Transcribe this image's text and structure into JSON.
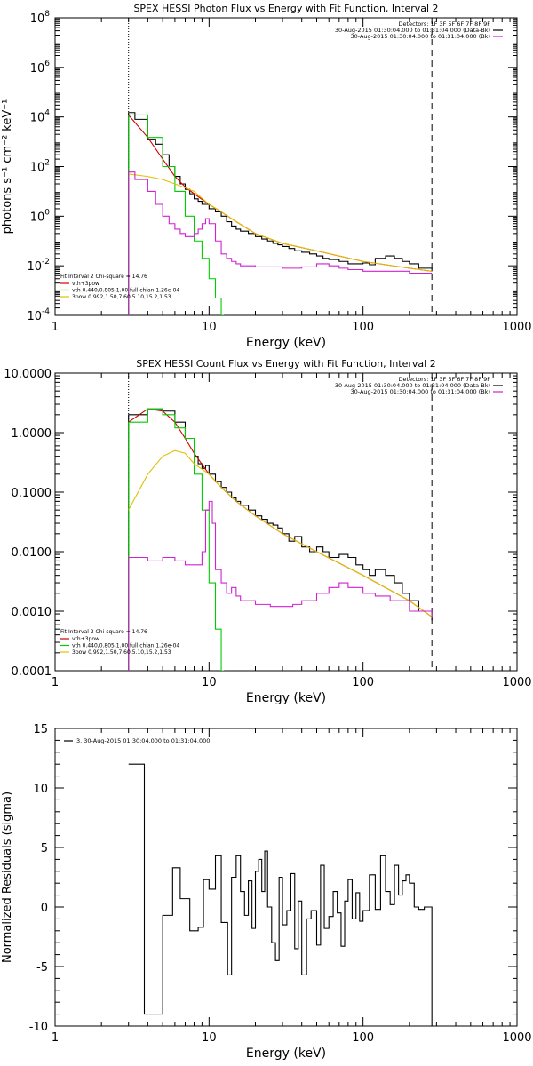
{
  "chart_data": [
    {
      "type": "line",
      "title": "SPEX HESSI Photon Flux vs Energy with Fit Function, Interval 2",
      "xlabel": "Energy (keV)",
      "ylabel": "photons s⁻¹ cm⁻² keV⁻¹",
      "xscale": "log",
      "yscale": "log",
      "xlim": [
        1,
        1000
      ],
      "ylim": [
        0.0001,
        100000000
      ],
      "x_ticks": [
        "1",
        "10",
        "100",
        "1000"
      ],
      "y_ticks": [
        {
          "base": "10",
          "exp": "-4"
        },
        {
          "base": "10",
          "exp": "-2"
        },
        {
          "base": "10",
          "exp": "0"
        },
        {
          "base": "10",
          "exp": "2"
        },
        {
          "base": "10",
          "exp": "4"
        },
        {
          "base": "10",
          "exp": "6"
        },
        {
          "base": "10",
          "exp": "8"
        }
      ],
      "vlines": [
        {
          "x": 3,
          "style": "dotted"
        },
        {
          "x": 280,
          "style": "dashed"
        }
      ],
      "legend_top": {
        "placement": "top-right",
        "lines": [
          {
            "text": "Detectors: 1F 3F 5F 6F 7F 8F 9F",
            "color": ""
          },
          {
            "text": "30-Aug-2015 01:30:04.000 to 01:31:04.000 (Data-Bk)",
            "color": "#000000"
          },
          {
            "text": "30-Aug-2015 01:30:04.000 to 01:31:04.000 (Bk)",
            "color": "#d020d0"
          }
        ]
      },
      "legend_bottom": {
        "placement": "bottom-left",
        "header": "Fit Interval 2   Chi-square = 14.76",
        "lines": [
          {
            "text": "vth+3pow",
            "color": "#d00000"
          },
          {
            "text": "vth 0.440,0.805,1.00  full chian 1.26e-04",
            "color": "#00cc00"
          },
          {
            "text": "3pow 0.992,1.50,7.60,5.10,15.2,1.53",
            "color": "#e0c000"
          }
        ]
      },
      "series": [
        {
          "legend": "Data-Bk",
          "color": "#000000",
          "style": "step",
          "x": [
            3,
            3.3,
            4,
            4.5,
            5,
            5.5,
            6,
            6.5,
            7,
            7.5,
            8,
            8.5,
            9,
            9.5,
            10,
            11,
            12,
            13,
            14,
            15,
            16,
            18,
            20,
            22,
            24,
            26,
            28,
            30,
            33,
            36,
            40,
            45,
            50,
            55,
            60,
            70,
            80,
            90,
            100,
            110,
            120,
            140,
            160,
            180,
            200,
            230,
            280
          ],
          "y": [
            15000,
            8000,
            1200,
            800,
            300,
            100,
            40,
            20,
            12,
            8,
            5,
            4,
            3,
            3,
            2,
            1.5,
            1,
            0.6,
            0.4,
            0.3,
            0.25,
            0.2,
            0.15,
            0.12,
            0.1,
            0.08,
            0.07,
            0.06,
            0.05,
            0.04,
            0.035,
            0.03,
            0.025,
            0.02,
            0.018,
            0.015,
            0.012,
            0.012,
            0.013,
            0.011,
            0.02,
            0.025,
            0.02,
            0.015,
            0.012,
            0.008,
            0.006
          ]
        },
        {
          "legend": "vth+3pow",
          "color": "#d00000",
          "style": "line",
          "x": [
            3,
            4,
            5,
            6,
            7,
            8,
            10,
            12,
            15,
            20,
            30,
            50,
            100,
            200,
            280
          ],
          "y": [
            12000,
            1500,
            200,
            40,
            15,
            8,
            3,
            1.5,
            0.6,
            0.2,
            0.08,
            0.04,
            0.015,
            0.008,
            0.006
          ]
        },
        {
          "legend": "vth",
          "color": "#00cc00",
          "style": "step",
          "x": [
            3,
            4,
            5,
            6,
            7,
            8,
            9,
            10,
            11,
            12,
            12.5
          ],
          "y": [
            12000,
            1500,
            100,
            10,
            1,
            0.1,
            0.02,
            0.003,
            0.0005,
            0.0001,
            0.0001
          ]
        },
        {
          "legend": "3pow",
          "color": "#e0c000",
          "style": "line",
          "x": [
            3,
            4,
            5,
            6,
            7,
            8,
            10,
            12,
            15,
            20,
            30,
            50,
            100,
            200,
            280
          ],
          "y": [
            50,
            40,
            30,
            20,
            14,
            10,
            3,
            1.5,
            0.6,
            0.2,
            0.08,
            0.04,
            0.015,
            0.008,
            0.006
          ]
        },
        {
          "legend": "Bk",
          "color": "#d020d0",
          "style": "step",
          "x": [
            3,
            3.3,
            4,
            4.5,
            5,
            5.5,
            6,
            6.5,
            7,
            7.5,
            8,
            8.5,
            9,
            9.5,
            10,
            11,
            12,
            13,
            14,
            15,
            16,
            18,
            20,
            25,
            30,
            35,
            40,
            50,
            60,
            70,
            80,
            100,
            120,
            150,
            200,
            280
          ],
          "y": [
            60,
            30,
            10,
            3,
            1,
            0.5,
            0.3,
            0.2,
            0.15,
            0.15,
            0.2,
            0.3,
            0.5,
            0.8,
            0.5,
            0.1,
            0.03,
            0.02,
            0.015,
            0.012,
            0.01,
            0.01,
            0.009,
            0.009,
            0.008,
            0.008,
            0.009,
            0.012,
            0.01,
            0.008,
            0.007,
            0.006,
            0.006,
            0.006,
            0.005,
            0.005
          ]
        }
      ]
    },
    {
      "type": "line",
      "title": "SPEX HESSI Count Flux vs Energy with Fit Function, Interval 2",
      "xlabel": "Energy (keV)",
      "ylabel": "",
      "xscale": "log",
      "yscale": "log",
      "xlim": [
        1,
        1000
      ],
      "ylim": [
        0.0001,
        10
      ],
      "x_ticks": [
        "1",
        "10",
        "100",
        "1000"
      ],
      "y_ticks": [
        "0.0001",
        "0.0010",
        "0.0100",
        "0.1000",
        "1.0000",
        "10.0000"
      ],
      "vlines": [
        {
          "x": 3,
          "style": "dotted"
        },
        {
          "x": 280,
          "style": "dashed"
        }
      ],
      "legend_top": {
        "placement": "top-right",
        "lines": [
          {
            "text": "Detectors: 1F 3F 5F 6F 7F 8F 9F",
            "color": ""
          },
          {
            "text": "30-Aug-2015 01:30:04.000 to 01:31:04.000 (Data-Bk)",
            "color": "#000000"
          },
          {
            "text": "30-Aug-2015 01:30:04.000 to 01:31:04.000 (Bk)",
            "color": "#d020d0"
          }
        ]
      },
      "legend_bottom": {
        "placement": "bottom-left",
        "header": "Fit Interval 2   Chi-square = 14.76",
        "lines": [
          {
            "text": "vth+3pow",
            "color": "#d00000"
          },
          {
            "text": "vth 0.440,0.805,1.00  full chian 1.26e-04",
            "color": "#00cc00"
          },
          {
            "text": "3pow 0.992,1.50,7.60,5.10,15.2,1.53",
            "color": "#e0c000"
          }
        ]
      },
      "series": [
        {
          "legend": "Data-Bk",
          "color": "#000000",
          "style": "step",
          "x": [
            3,
            4,
            5,
            6,
            7,
            8,
            8.5,
            9,
            9.5,
            10,
            11,
            12,
            13,
            14,
            15,
            16,
            18,
            20,
            22,
            24,
            26,
            28,
            30,
            33,
            36,
            40,
            45,
            50,
            55,
            60,
            70,
            80,
            90,
            100,
            110,
            120,
            140,
            160,
            180,
            200,
            230,
            280
          ],
          "y": [
            2,
            2.5,
            2.3,
            1.5,
            0.8,
            0.4,
            0.3,
            0.25,
            0.28,
            0.2,
            0.15,
            0.12,
            0.1,
            0.08,
            0.07,
            0.06,
            0.05,
            0.04,
            0.035,
            0.03,
            0.028,
            0.025,
            0.02,
            0.015,
            0.018,
            0.012,
            0.01,
            0.012,
            0.01,
            0.008,
            0.009,
            0.008,
            0.006,
            0.005,
            0.004,
            0.005,
            0.004,
            0.003,
            0.002,
            0.0015,
            0.001,
            0.0007
          ]
        },
        {
          "legend": "vth+3pow",
          "color": "#d00000",
          "style": "line",
          "x": [
            3,
            4,
            5,
            6,
            7,
            8,
            10,
            12,
            15,
            20,
            30,
            50,
            100,
            200,
            280
          ],
          "y": [
            1.5,
            2.5,
            2.3,
            1.5,
            0.8,
            0.45,
            0.2,
            0.12,
            0.07,
            0.04,
            0.02,
            0.01,
            0.004,
            0.0015,
            0.0008
          ]
        },
        {
          "legend": "vth",
          "color": "#00cc00",
          "style": "step",
          "x": [
            3,
            4,
            5,
            6,
            7,
            8,
            9,
            10,
            11,
            12,
            12.5
          ],
          "y": [
            1.5,
            2.5,
            2,
            1.2,
            0.8,
            0.2,
            0.05,
            0.003,
            0.0005,
            0.0001,
            0.0001
          ]
        },
        {
          "legend": "3pow",
          "color": "#e0c000",
          "style": "line",
          "x": [
            3,
            4,
            5,
            6,
            7,
            8,
            10,
            12,
            15,
            20,
            30,
            50,
            100,
            200,
            280
          ],
          "y": [
            0.05,
            0.2,
            0.4,
            0.5,
            0.45,
            0.3,
            0.2,
            0.12,
            0.07,
            0.04,
            0.02,
            0.01,
            0.004,
            0.0015,
            0.0008
          ]
        },
        {
          "legend": "Bk",
          "color": "#d020d0",
          "style": "step",
          "x": [
            3,
            4,
            5,
            6,
            7,
            8,
            9,
            9.5,
            10,
            10.5,
            11,
            12,
            13,
            14,
            15,
            16,
            18,
            20,
            25,
            30,
            35,
            40,
            50,
            60,
            70,
            80,
            100,
            120,
            150,
            200,
            280
          ],
          "y": [
            0.008,
            0.007,
            0.008,
            0.007,
            0.006,
            0.006,
            0.01,
            0.05,
            0.07,
            0.03,
            0.005,
            0.003,
            0.002,
            0.0025,
            0.0018,
            0.0015,
            0.0015,
            0.0013,
            0.0012,
            0.0012,
            0.0013,
            0.0015,
            0.002,
            0.0025,
            0.003,
            0.0025,
            0.002,
            0.0018,
            0.0015,
            0.001,
            0.0008
          ]
        }
      ]
    },
    {
      "type": "line",
      "title": "",
      "xlabel": "Energy (keV)",
      "ylabel": "Normalized Residuals (sigma)",
      "xscale": "log",
      "yscale": "linear",
      "xlim": [
        1,
        1000
      ],
      "ylim": [
        -10,
        15
      ],
      "x_ticks": [
        "1",
        "10",
        "100",
        "1000"
      ],
      "y_ticks": [
        "-10",
        "-5",
        "0",
        "5",
        "10",
        "15"
      ],
      "vlines": [],
      "legend_top": {
        "placement": "top-left",
        "lines": [
          {
            "text": "3. 30-Aug-2015 01:30:04.000 to 01:31:04.000",
            "color": "#000000"
          }
        ]
      },
      "legend_bottom": null,
      "series": [
        {
          "legend": "3. 30-Aug-2015 01:30:04.000 to 01:31:04.000",
          "color": "#000000",
          "style": "step",
          "x": [
            3,
            3.8,
            5,
            5.8,
            6.5,
            7.5,
            8.5,
            9.2,
            10,
            11,
            12,
            13.2,
            14,
            15,
            16,
            17,
            18,
            19,
            20,
            21,
            22,
            23,
            24,
            25.5,
            27,
            28.5,
            30,
            32,
            34,
            36,
            38,
            40,
            43,
            46,
            50,
            53,
            56,
            60,
            64,
            68,
            72,
            76,
            80,
            85,
            90,
            95,
            100,
            110,
            120,
            130,
            140,
            150,
            160,
            170,
            180,
            190,
            200,
            215,
            230,
            250,
            280
          ],
          "y": [
            12,
            -9,
            -0.7,
            3.3,
            0.7,
            -2,
            -1.7,
            2.3,
            1.5,
            4.3,
            -1.3,
            -5.7,
            2.5,
            4.3,
            1.3,
            -0.7,
            2.2,
            -1.8,
            3,
            4,
            1.3,
            4.7,
            0,
            -3,
            -4.5,
            2.5,
            -1.5,
            -0.3,
            2.8,
            -3.5,
            0.5,
            -5.7,
            -1,
            -0.3,
            -3.2,
            3.5,
            -1.8,
            -0.8,
            1.3,
            -0.5,
            -3.3,
            0.5,
            2.3,
            -1,
            1.2,
            -1.2,
            -0.3,
            2.7,
            -0.2,
            4.3,
            1.3,
            0.2,
            3.5,
            1,
            2.2,
            2.7,
            2,
            0,
            -0.2,
            0,
            -10
          ]
        }
      ]
    }
  ]
}
